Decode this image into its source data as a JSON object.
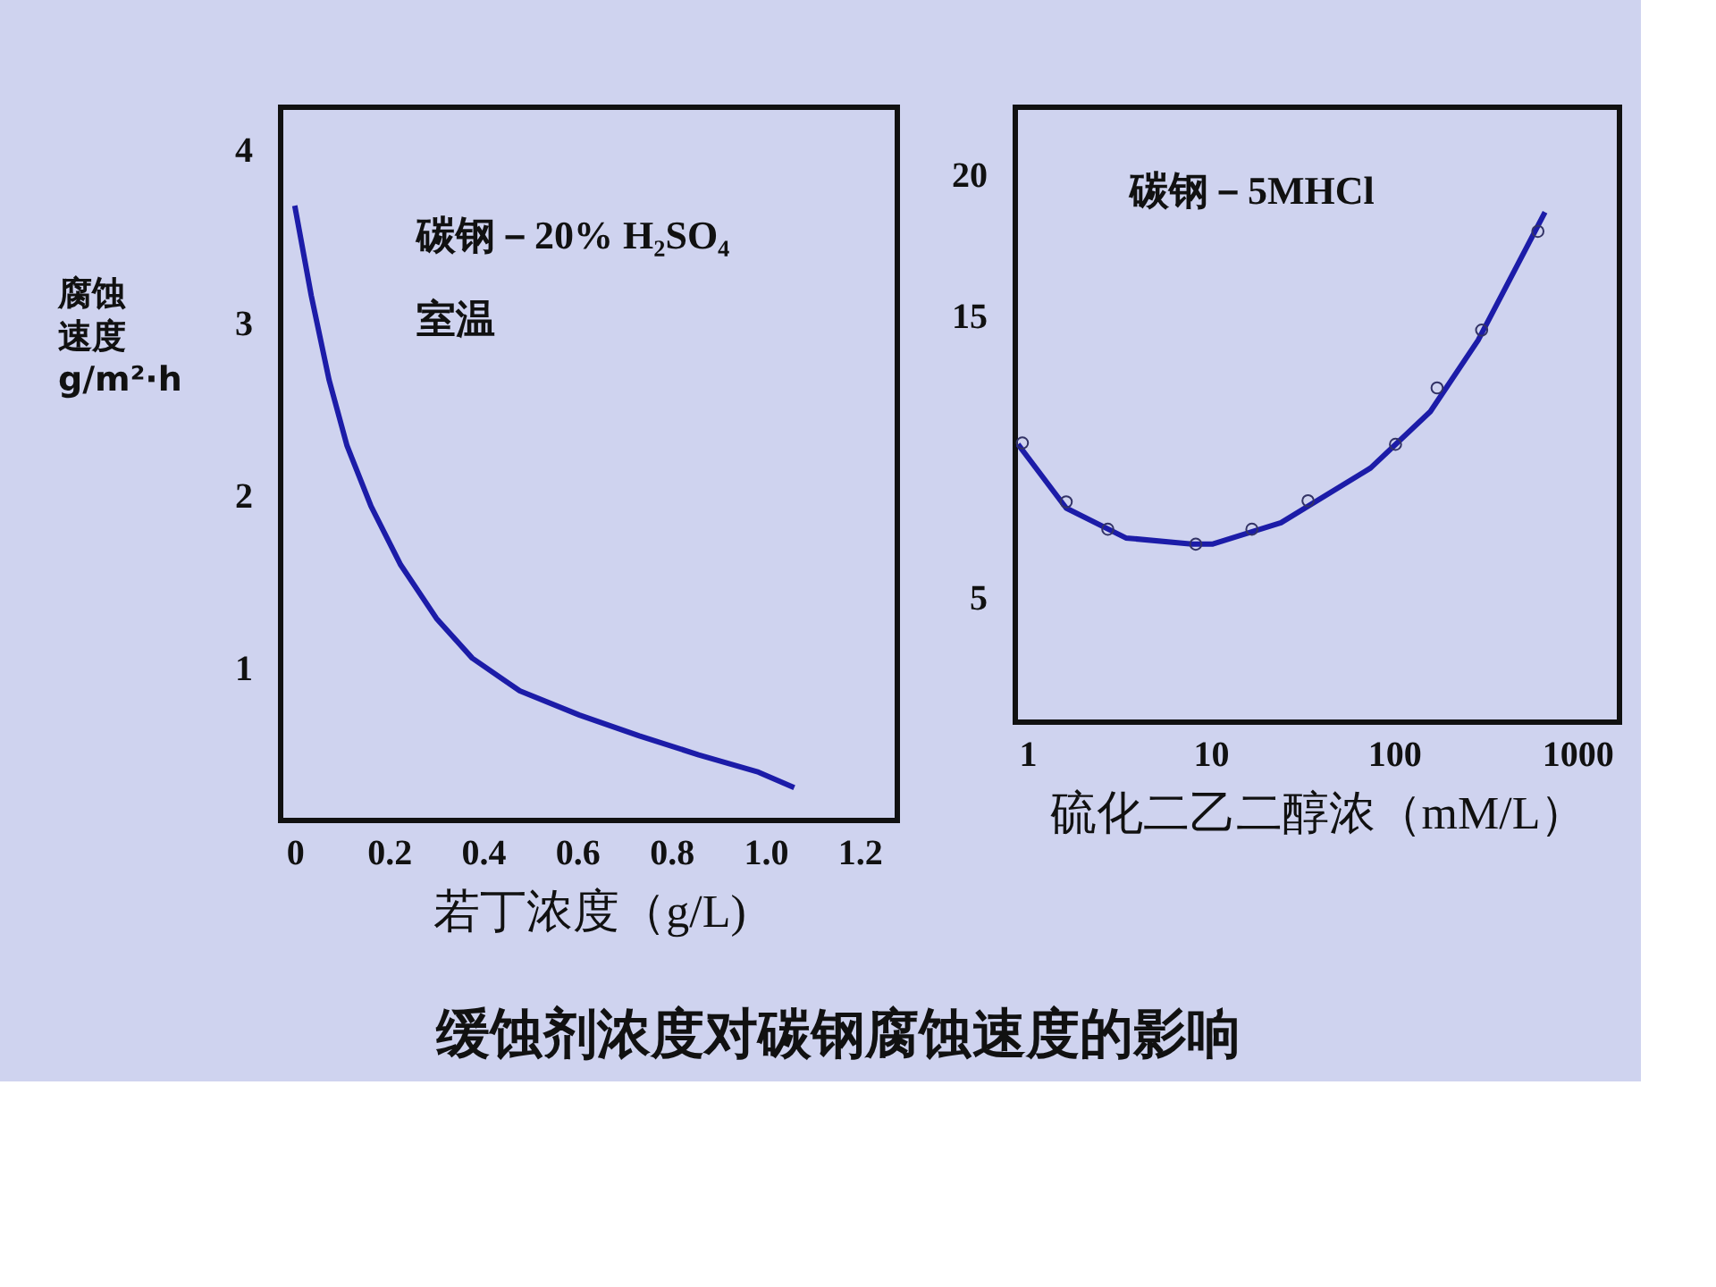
{
  "chart_data": [
    {
      "type": "line",
      "title": "缓蚀剂浓度对碳钢腐蚀速度的影响",
      "xlabel": "若丁浓度（g/L)",
      "ylabel": "腐蚀速度g/m²·h",
      "annotations": [
        "碳钢－20% H₂SO₄",
        "室温"
      ],
      "xlim": [
        -0.03,
        1.28
      ],
      "xticks": [
        {
          "value": 0,
          "label": "0"
        },
        0.2,
        0.4,
        0.6,
        0.8,
        {
          "value": 1.0,
          "label": "1.0"
        },
        1.2
      ],
      "ylim": [
        0.12,
        4.25
      ],
      "yticks": [
        1,
        2,
        3,
        4
      ],
      "grid": false,
      "series": [
        {
          "color": "#1c1ca8",
          "marker": "none",
          "line_style": "solid",
          "x": [
            0,
            0.035,
            0.073,
            0.111,
            0.162,
            0.225,
            0.301,
            0.377,
            0.478,
            0.605,
            0.732,
            0.858,
            0.985,
            1.061
          ],
          "values": [
            3.68,
            3.16,
            2.67,
            2.29,
            1.94,
            1.6,
            1.29,
            1.06,
            0.87,
            0.73,
            0.61,
            0.5,
            0.4,
            0.31
          ]
        }
      ]
    },
    {
      "type": "line",
      "xlabel": "硫化二乙二醇浓（mM/L）",
      "annotations": [
        "碳钢－5MHCl"
      ],
      "log": "x",
      "xlim": [
        0.86,
        1700
      ],
      "xticks": [
        1,
        10,
        100,
        {
          "value": 1000,
          "label": "1000"
        }
      ],
      "ylim": [
        0.6,
        22.4
      ],
      "yticks": [
        5,
        15,
        20
      ],
      "grid": false,
      "series": [
        {
          "color": "#1c1ca8",
          "marker": "none",
          "line_style": "solid",
          "x": [
            0.89,
            1.63,
            3.45,
            7.9,
            10.2,
            24.2,
            74.6,
            158,
            288,
            667
          ],
          "values": [
            10.45,
            8.19,
            7.13,
            6.91,
            6.91,
            7.67,
            9.61,
            11.61,
            14.14,
            18.68
          ]
        },
        {
          "type": "scatter",
          "color": "#333366",
          "marker": "circle",
          "x": [
            0.94,
            1.63,
            2.75,
            8.3,
            16.8,
            34,
            102,
            172,
            301,
            610
          ],
          "values": [
            10.5,
            8.41,
            7.44,
            6.91,
            7.44,
            8.45,
            10.45,
            12.45,
            14.5,
            18.0
          ]
        }
      ]
    }
  ]
}
